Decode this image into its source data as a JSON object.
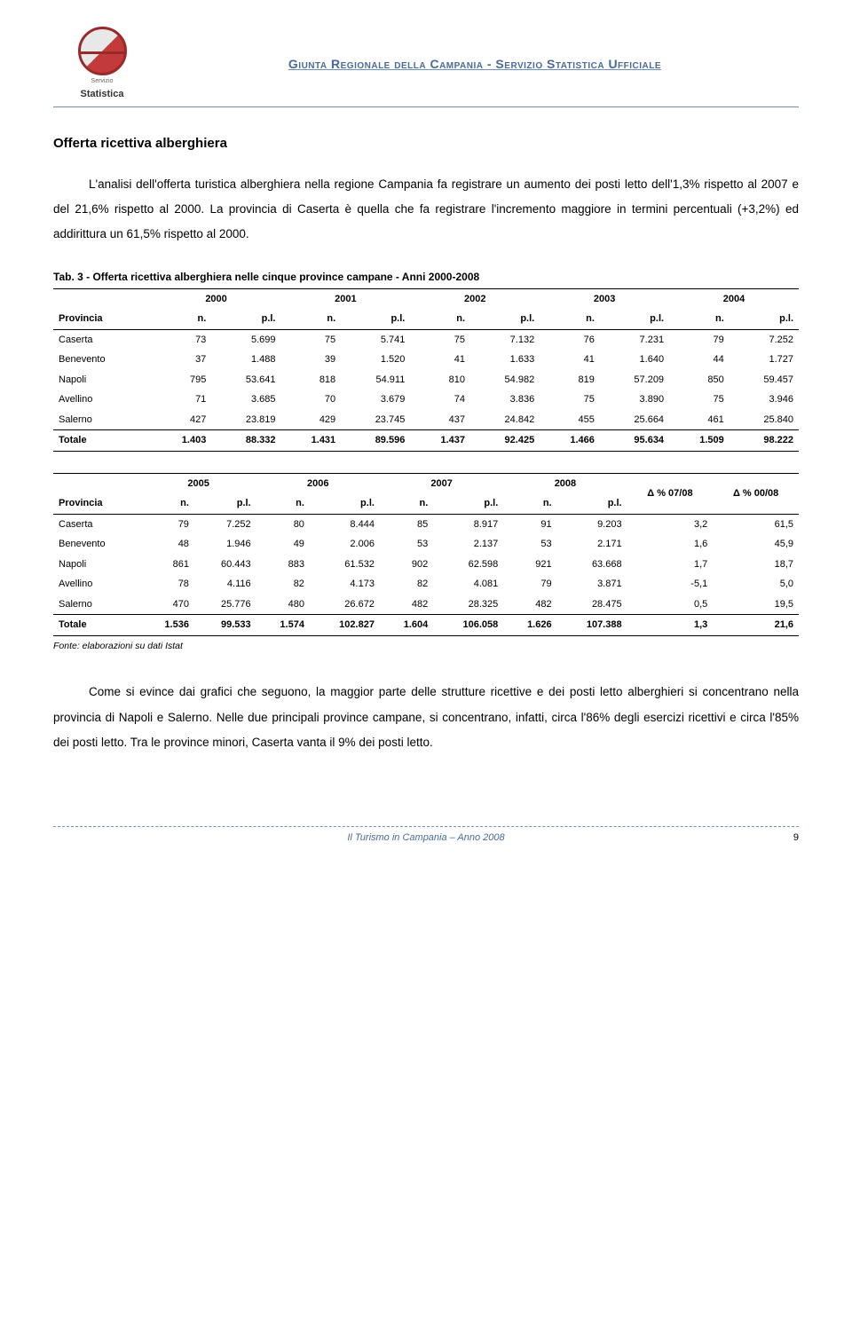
{
  "header": {
    "org_title": "Giunta Regionale della Campania - Servizio Statistica Ufficiale",
    "logo_label_small": "Servizio",
    "logo_label_big": "Statistica"
  },
  "section_title": "Offerta ricettiva alberghiera",
  "para1": "L'analisi dell'offerta turistica alberghiera nella regione Campania fa registrare un aumento dei posti letto dell'1,3% rispetto al 2007 e del 21,6% rispetto al 2000. La provincia di Caserta è quella che fa registrare l'incremento maggiore in termini percentuali (+3,2%) ed addirittura un 61,5% rispetto al 2000.",
  "table_caption": "Tab. 3 - Offerta ricettiva alberghiera nelle cinque province campane - Anni 2000-2008",
  "table1": {
    "years": [
      "2000",
      "2001",
      "2002",
      "2003",
      "2004"
    ],
    "subheaders": [
      "Provincia",
      "n.",
      "p.l.",
      "n.",
      "p.l.",
      "n.",
      "p.l.",
      "n.",
      "p.l.",
      "n.",
      "p.l."
    ],
    "rows": [
      {
        "label": "Caserta",
        "cells": [
          "73",
          "5.699",
          "75",
          "5.741",
          "75",
          "7.132",
          "76",
          "7.231",
          "79",
          "7.252"
        ]
      },
      {
        "label": "Benevento",
        "cells": [
          "37",
          "1.488",
          "39",
          "1.520",
          "41",
          "1.633",
          "41",
          "1.640",
          "44",
          "1.727"
        ]
      },
      {
        "label": "Napoli",
        "cells": [
          "795",
          "53.641",
          "818",
          "54.911",
          "810",
          "54.982",
          "819",
          "57.209",
          "850",
          "59.457"
        ]
      },
      {
        "label": "Avellino",
        "cells": [
          "71",
          "3.685",
          "70",
          "3.679",
          "74",
          "3.836",
          "75",
          "3.890",
          "75",
          "3.946"
        ]
      },
      {
        "label": "Salerno",
        "cells": [
          "427",
          "23.819",
          "429",
          "23.745",
          "437",
          "24.842",
          "455",
          "25.664",
          "461",
          "25.840"
        ]
      }
    ],
    "total": {
      "label": "Totale",
      "cells": [
        "1.403",
        "88.332",
        "1.431",
        "89.596",
        "1.437",
        "92.425",
        "1.466",
        "95.634",
        "1.509",
        "98.222"
      ]
    }
  },
  "table2": {
    "years": [
      "2005",
      "2006",
      "2007",
      "2008"
    ],
    "delta1": "Δ % 07/08",
    "delta2": "Δ % 00/08",
    "subheaders": [
      "Provincia",
      "n.",
      "p.l.",
      "n.",
      "p.l.",
      "n.",
      "p.l.",
      "n.",
      "p.l."
    ],
    "rows": [
      {
        "label": "Caserta",
        "cells": [
          "79",
          "7.252",
          "80",
          "8.444",
          "85",
          "8.917",
          "91",
          "9.203",
          "3,2",
          "61,5"
        ]
      },
      {
        "label": "Benevento",
        "cells": [
          "48",
          "1.946",
          "49",
          "2.006",
          "53",
          "2.137",
          "53",
          "2.171",
          "1,6",
          "45,9"
        ]
      },
      {
        "label": "Napoli",
        "cells": [
          "861",
          "60.443",
          "883",
          "61.532",
          "902",
          "62.598",
          "921",
          "63.668",
          "1,7",
          "18,7"
        ]
      },
      {
        "label": "Avellino",
        "cells": [
          "78",
          "4.116",
          "82",
          "4.173",
          "82",
          "4.081",
          "79",
          "3.871",
          "-5,1",
          "5,0"
        ]
      },
      {
        "label": "Salerno",
        "cells": [
          "470",
          "25.776",
          "480",
          "26.672",
          "482",
          "28.325",
          "482",
          "28.475",
          "0,5",
          "19,5"
        ]
      }
    ],
    "total": {
      "label": "Totale",
      "cells": [
        "1.536",
        "99.533",
        "1.574",
        "102.827",
        "1.604",
        "106.058",
        "1.626",
        "107.388",
        "1,3",
        "21,6"
      ]
    }
  },
  "fonte": "Fonte: elaborazioni su dati Istat",
  "para2": "Come si evince dai grafici che seguono, la maggior parte delle strutture ricettive e dei posti letto alberghieri si concentrano nella provincia di Napoli e Salerno. Nelle due principali province campane, si concentrano, infatti, circa l'86% degli esercizi ricettivi e circa l'85% dei posti letto. Tra le province minori, Caserta vanta il 9% dei posti letto.",
  "footer": {
    "title": "Il Turismo in Campania – Anno 2008",
    "page": "9"
  },
  "colors": {
    "header_text": "#4a6a9a",
    "rule": "#6f8fb5",
    "logo_red": "#c23a3a"
  }
}
